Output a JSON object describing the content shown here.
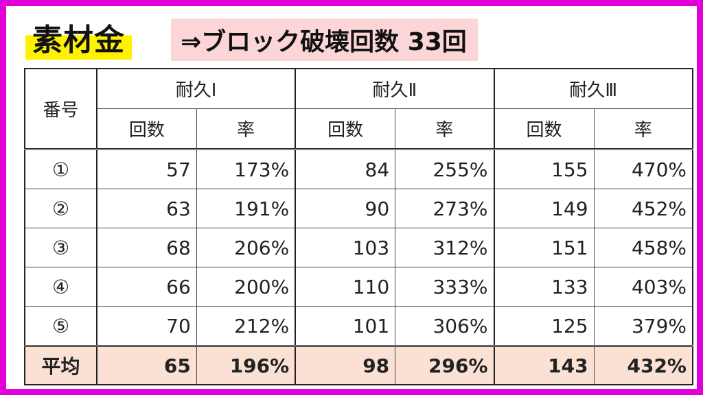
{
  "title": "素材金",
  "subtitle": "⇒ブロック破壊回数 33回",
  "table": {
    "index_header": "番号",
    "groups": [
      "耐久Ⅰ",
      "耐久Ⅱ",
      "耐久Ⅲ"
    ],
    "sub_headers": [
      "回数",
      "率",
      "回数",
      "率",
      "回数",
      "率"
    ],
    "rows": [
      {
        "label": "①",
        "cells": [
          "57",
          "173%",
          "84",
          "255%",
          "155",
          "470%"
        ]
      },
      {
        "label": "②",
        "cells": [
          "63",
          "191%",
          "90",
          "273%",
          "149",
          "452%"
        ]
      },
      {
        "label": "③",
        "cells": [
          "68",
          "206%",
          "103",
          "312%",
          "151",
          "458%"
        ]
      },
      {
        "label": "④",
        "cells": [
          "66",
          "200%",
          "110",
          "333%",
          "133",
          "403%"
        ]
      },
      {
        "label": "⑤",
        "cells": [
          "70",
          "212%",
          "101",
          "306%",
          "125",
          "379%"
        ]
      }
    ],
    "average": {
      "label": "平均",
      "cells": [
        "65",
        "196%",
        "98",
        "296%",
        "143",
        "432%"
      ]
    }
  },
  "colors": {
    "frame": "#e000d8",
    "title_highlight": "#fff200",
    "subtitle_bg": "#fcd6d6",
    "average_bg": "#fbe1d3"
  }
}
